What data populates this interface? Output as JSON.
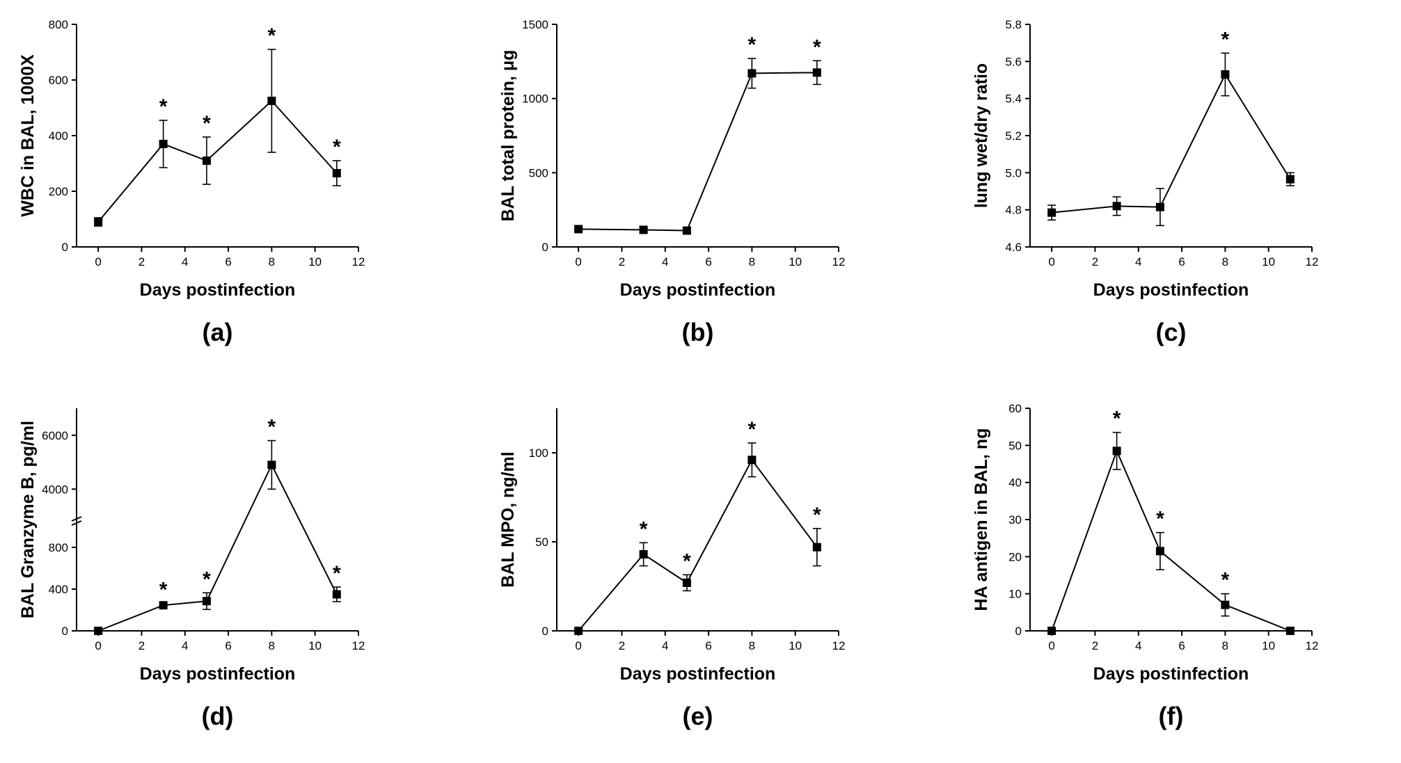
{
  "chart_data": [
    {
      "type": "line",
      "panel_label": "(a)",
      "xlabel": "Days postinfection",
      "ylabel": "WBC in BAL, 1000X",
      "xlim": [
        -1,
        12
      ],
      "ylim": [
        0,
        800
      ],
      "xticks": [
        0,
        2,
        4,
        6,
        8,
        10,
        12
      ],
      "xtick_labels": [
        "0",
        "2",
        "4",
        "6",
        "8",
        "10",
        "12"
      ],
      "yticks": [
        0,
        200,
        400,
        600,
        800
      ],
      "ytick_labels": [
        "0",
        "200",
        "400",
        "600",
        "800"
      ],
      "series": [
        {
          "name": "WBC",
          "x": [
            0,
            3,
            5,
            8,
            11
          ],
          "values": [
            90,
            370,
            310,
            525,
            265
          ],
          "errors": [
            15,
            85,
            85,
            185,
            45
          ],
          "significant": [
            false,
            true,
            true,
            true,
            true
          ]
        }
      ],
      "significance_marker": "*"
    },
    {
      "type": "line",
      "panel_label": "(b)",
      "xlabel": "Days postinfection",
      "ylabel": "BAL total protein, μg",
      "xlim": [
        -1,
        12
      ],
      "ylim": [
        0,
        1500
      ],
      "xticks": [
        0,
        2,
        4,
        6,
        8,
        10,
        12
      ],
      "xtick_labels": [
        "0",
        "2",
        "4",
        "6",
        "8",
        "10",
        "12"
      ],
      "yticks": [
        0,
        500,
        1000,
        1500
      ],
      "ytick_labels": [
        "0",
        "500",
        "1000",
        "1500"
      ],
      "series": [
        {
          "name": "Protein",
          "x": [
            0,
            3,
            5,
            8,
            11
          ],
          "values": [
            120,
            115,
            110,
            1170,
            1175
          ],
          "errors": [
            15,
            20,
            20,
            100,
            80
          ],
          "significant": [
            false,
            false,
            false,
            true,
            true
          ]
        }
      ],
      "significance_marker": "*"
    },
    {
      "type": "line",
      "panel_label": "(c)",
      "xlabel": "Days postinfection",
      "ylabel": "lung wet/dry ratio",
      "xlim": [
        -1,
        12
      ],
      "ylim": [
        4.6,
        5.8
      ],
      "xticks": [
        0,
        2,
        4,
        6,
        8,
        10,
        12
      ],
      "xtick_labels": [
        "0",
        "2",
        "4",
        "6",
        "8",
        "10",
        "12"
      ],
      "yticks": [
        4.6,
        4.8,
        5.0,
        5.2,
        5.4,
        5.6,
        5.8
      ],
      "ytick_labels": [
        "4.6",
        "4.8",
        "5.0",
        "5.2",
        "5.4",
        "5.6",
        "5.8"
      ],
      "series": [
        {
          "name": "Wet/dry",
          "x": [
            0,
            3,
            5,
            8,
            11
          ],
          "values": [
            4.785,
            4.82,
            4.815,
            5.53,
            4.965
          ],
          "errors": [
            0.04,
            0.05,
            0.1,
            0.115,
            0.035
          ],
          "significant": [
            false,
            false,
            false,
            true,
            false
          ]
        }
      ],
      "significance_marker": "*"
    },
    {
      "type": "line",
      "panel_label": "(d)",
      "xlabel": "Days postinfection",
      "ylabel": "BAL Granzyme B, pg/ml",
      "xlim": [
        -1,
        12
      ],
      "ylim": [
        0,
        7000
      ],
      "broken_axis": true,
      "xticks": [
        0,
        2,
        4,
        6,
        8,
        10,
        12
      ],
      "xtick_labels": [
        "0",
        "2",
        "4",
        "6",
        "8",
        "10",
        "12"
      ],
      "yticks": [
        0,
        400,
        800,
        4000,
        6000
      ],
      "ytick_labels": [
        "0",
        "400",
        "800",
        "4000",
        "6000"
      ],
      "series": [
        {
          "name": "Granzyme B",
          "x": [
            0,
            3,
            5,
            8,
            11
          ],
          "values": [
            0,
            245,
            285,
            4900,
            350
          ],
          "errors": [
            0,
            20,
            80,
            900,
            70
          ],
          "significant": [
            false,
            true,
            true,
            true,
            true
          ]
        }
      ],
      "significance_marker": "*"
    },
    {
      "type": "line",
      "panel_label": "(e)",
      "xlabel": "Days postinfection",
      "ylabel": "BAL MPO, ng/ml",
      "xlim": [
        -1,
        12
      ],
      "ylim": [
        0,
        125
      ],
      "xticks": [
        0,
        2,
        4,
        6,
        8,
        10,
        12
      ],
      "xtick_labels": [
        "0",
        "2",
        "4",
        "6",
        "8",
        "10",
        "12"
      ],
      "yticks": [
        0,
        50,
        100
      ],
      "ytick_labels": [
        "0",
        "50",
        "100"
      ],
      "series": [
        {
          "name": "MPO",
          "x": [
            0,
            3,
            5,
            8,
            11
          ],
          "values": [
            0,
            43,
            27,
            96,
            47
          ],
          "errors": [
            0,
            6.5,
            4.5,
            9.5,
            10.5
          ],
          "significant": [
            false,
            true,
            true,
            true,
            true
          ]
        }
      ],
      "significance_marker": "*"
    },
    {
      "type": "line",
      "panel_label": "(f)",
      "xlabel": "Days postinfection",
      "ylabel": "HA antigen in BAL, ng",
      "xlim": [
        -1,
        12
      ],
      "ylim": [
        0,
        60
      ],
      "xticks": [
        0,
        2,
        4,
        6,
        8,
        10,
        12
      ],
      "xtick_labels": [
        "0",
        "2",
        "4",
        "6",
        "8",
        "10",
        "12"
      ],
      "yticks": [
        0,
        10,
        20,
        30,
        40,
        50,
        60
      ],
      "ytick_labels": [
        "0",
        "10",
        "20",
        "30",
        "40",
        "50",
        "60"
      ],
      "series": [
        {
          "name": "HA antigen",
          "x": [
            0,
            3,
            5,
            8,
            11
          ],
          "values": [
            0,
            48.5,
            21.5,
            7,
            0
          ],
          "errors": [
            0,
            5,
            5,
            3,
            0
          ],
          "significant": [
            false,
            true,
            true,
            true,
            false
          ]
        }
      ],
      "significance_marker": "*"
    }
  ]
}
